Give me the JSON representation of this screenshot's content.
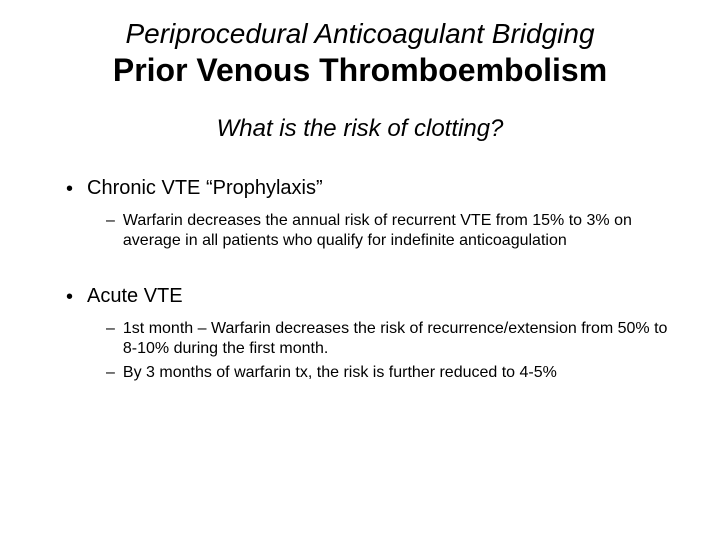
{
  "title": {
    "line1": "Periprocedural Anticoagulant Bridging",
    "line2": "Prior Venous Thromboembolism"
  },
  "subtitle": "What is the risk of clotting?",
  "groups": [
    {
      "heading": "Chronic VTE “Prophylaxis”",
      "subitems": [
        "Warfarin decreases the annual risk of recurrent VTE from 15% to 3% on average in all patients who qualify for indefinite anticoagulation"
      ]
    },
    {
      "heading": "Acute VTE",
      "subitems": [
        "1st month – Warfarin decreases the risk of recurrence/extension from 50% to 8-10% during the first month.",
        "By 3 months of warfarin tx, the risk is further reduced to 4-5%"
      ]
    }
  ],
  "style": {
    "background": "#ffffff",
    "text_color": "#000000",
    "title_line1_fontsize": 28,
    "title_line2_fontsize": 32,
    "subtitle_fontsize": 24,
    "bullet_l1_fontsize": 20,
    "bullet_l2_fontsize": 16,
    "bullet_l1_marker": "•",
    "bullet_l2_marker": "–"
  }
}
